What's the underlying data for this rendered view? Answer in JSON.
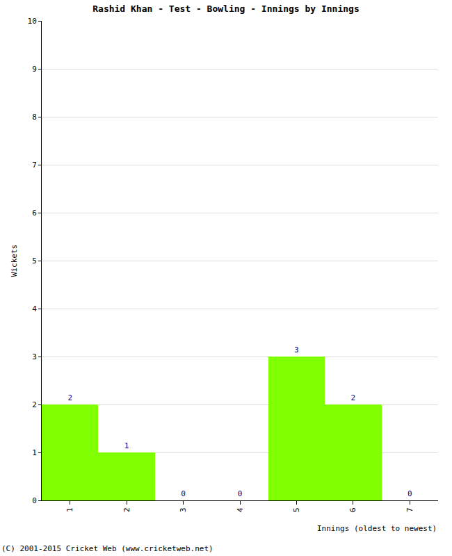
{
  "chart_data": {
    "type": "bar",
    "title": "Rashid Khan - Test - Bowling - Innings by Innings",
    "x_label": "Innings (oldest to newest)",
    "y_label": "Wickets",
    "categories": [
      "1",
      "2",
      "3",
      "4",
      "5",
      "6",
      "7"
    ],
    "values": [
      2,
      1,
      0,
      0,
      3,
      2,
      0
    ],
    "color": "#80ff00",
    "ylim": [
      0,
      10
    ],
    "yticks": [
      0,
      1,
      2,
      3,
      4,
      5,
      6,
      7,
      8,
      9,
      10
    ],
    "grid": true,
    "data_labels": true,
    "annotations": [
      "(C) 2001-2015 Cricket Web (www.cricketweb.net)"
    ]
  }
}
